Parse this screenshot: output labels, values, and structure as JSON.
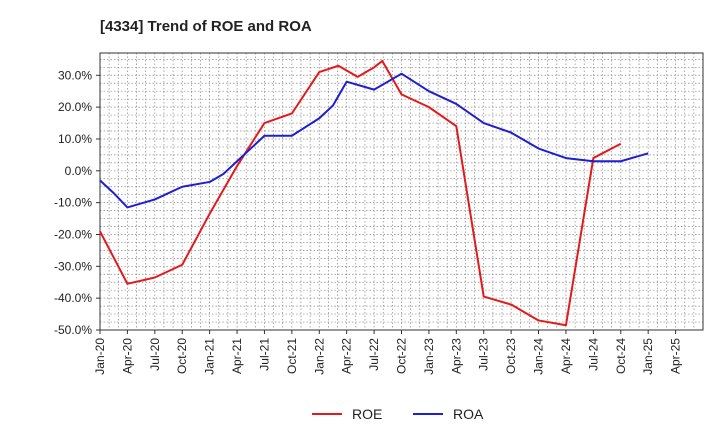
{
  "chart_data": {
    "type": "line",
    "title": "[4334]  Trend of ROE and ROA",
    "xlabel": "",
    "ylabel": "",
    "categories": [
      "Jan-20",
      "Apr-20",
      "Jul-20",
      "Oct-20",
      "Jan-21",
      "Apr-21",
      "Jul-21",
      "Oct-21",
      "Jan-22",
      "Apr-22",
      "Jul-22",
      "Oct-22",
      "Jan-23",
      "Apr-23",
      "Jul-23",
      "Oct-23",
      "Jan-24",
      "Apr-24",
      "Jul-24",
      "Oct-24",
      "Jan-25",
      "Apr-25"
    ],
    "x_index": [
      0,
      22
    ],
    "ylim": [
      -50,
      37
    ],
    "y_ticks": [
      {
        "value": 30,
        "label": "30.0%"
      },
      {
        "value": 20,
        "label": "20.0%"
      },
      {
        "value": 10,
        "label": "10.0%"
      },
      {
        "value": 0,
        "label": "0.0%"
      },
      {
        "value": -10,
        "label": "-10.0%"
      },
      {
        "value": -20,
        "label": "-20.0%"
      },
      {
        "value": -30,
        "label": "-30.0%"
      },
      {
        "value": -40,
        "label": "-40.0%"
      },
      {
        "value": -50,
        "label": "-50.0%"
      }
    ],
    "grid": true,
    "legend": "bottom-center",
    "series": [
      {
        "name": "ROE",
        "color": "#e31a1c",
        "points": [
          [
            0,
            -19
          ],
          [
            1,
            -35.5
          ],
          [
            2,
            -33.5
          ],
          [
            3,
            -29.5
          ],
          [
            4,
            -13.5
          ],
          [
            5,
            1.5
          ],
          [
            6,
            15
          ],
          [
            7,
            18
          ],
          [
            8,
            31
          ],
          [
            8.7,
            33
          ],
          [
            9.4,
            29.5
          ],
          [
            10,
            32.5
          ],
          [
            10.3,
            34.5
          ],
          [
            11,
            24
          ],
          [
            12,
            20
          ],
          [
            13,
            14
          ],
          [
            14,
            -39.5
          ],
          [
            15,
            -42
          ],
          [
            16,
            -47
          ],
          [
            17,
            -48.5
          ],
          [
            18,
            4
          ],
          [
            19,
            8.5
          ]
        ]
      },
      {
        "name": "ROA",
        "color": "#1f1fd0",
        "points": [
          [
            0,
            -3
          ],
          [
            0.5,
            -7
          ],
          [
            1,
            -11.5
          ],
          [
            2,
            -9
          ],
          [
            3,
            -5
          ],
          [
            4,
            -3.5
          ],
          [
            4.5,
            -1
          ],
          [
            5,
            3
          ],
          [
            6,
            11
          ],
          [
            7,
            11
          ],
          [
            8,
            16.5
          ],
          [
            8.5,
            20.5
          ],
          [
            9,
            28
          ],
          [
            10,
            25.5
          ],
          [
            11,
            30.5
          ],
          [
            12,
            25
          ],
          [
            13,
            21
          ],
          [
            14,
            15
          ],
          [
            15,
            12
          ],
          [
            16,
            7
          ],
          [
            17,
            4
          ],
          [
            18,
            3
          ],
          [
            19,
            3
          ],
          [
            20,
            5.5
          ]
        ]
      }
    ]
  }
}
